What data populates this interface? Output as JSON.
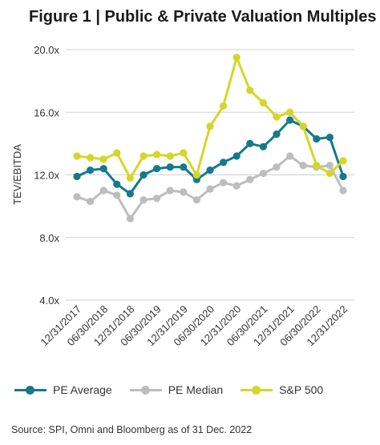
{
  "title": "Figure 1 | Public & Private Valuation Multiples",
  "source": "Source: SPI, Omni and Bloomberg as of 31 Dec. 2022",
  "colors": {
    "pe_average": "#137a8c",
    "pe_median": "#bdbdbd",
    "sp500": "#d4d62a",
    "grid": "#d0d0d0",
    "axis_text": "#333333"
  },
  "chart_data": {
    "type": "line",
    "title": "Figure 1 | Public & Private Valuation Multiples",
    "ylabel": "TEV/EBITDA",
    "xlabel": "",
    "ylim": [
      4.0,
      20.0
    ],
    "yticks": [
      "4.0x",
      "8.0x",
      "12.0x",
      "16.0x",
      "20.0x"
    ],
    "ytick_values": [
      4,
      8,
      12,
      16,
      20
    ],
    "grid": "horizontal",
    "legend_position": "bottom",
    "x": [
      "Q4 2017",
      "Q1 2018",
      "Q2 2018",
      "Q3 2018",
      "Q4 2018",
      "Q1 2019",
      "Q2 2019",
      "Q3 2019",
      "Q4 2019",
      "Q1 2020",
      "Q2 2020",
      "Q3 2020",
      "Q4 2020",
      "Q1 2021",
      "Q2 2021",
      "Q3 2021",
      "Q4 2021",
      "Q1 2022",
      "Q2 2022",
      "Q3 2022",
      "Q4 2022"
    ],
    "xtick_labels": [
      "12/31/2017",
      "06/30/2018",
      "12/31/2018",
      "06/30/2019",
      "12/31/2019",
      "06/30/2020",
      "12/31/2020",
      "06/30/2021",
      "12/31/2021",
      "06/30/2022",
      "12/31/2022"
    ],
    "xtick_index": [
      0,
      2,
      4,
      6,
      8,
      10,
      12,
      14,
      16,
      18,
      20
    ],
    "series": [
      {
        "name": "PE Average",
        "key": "pe_average",
        "values": [
          11.9,
          12.3,
          12.4,
          11.4,
          10.8,
          12.0,
          12.4,
          12.5,
          12.5,
          11.7,
          12.3,
          12.8,
          13.2,
          14.0,
          13.8,
          14.6,
          15.5,
          15.1,
          14.3,
          14.4,
          11.9
        ]
      },
      {
        "name": "PE Median",
        "key": "pe_median",
        "values": [
          10.6,
          10.3,
          11.0,
          10.7,
          9.2,
          10.4,
          10.5,
          11.0,
          10.9,
          10.4,
          11.1,
          11.5,
          11.3,
          11.7,
          12.1,
          12.5,
          13.2,
          12.6,
          12.5,
          12.6,
          11.0
        ]
      },
      {
        "name": "S&P 500",
        "key": "sp500",
        "values": [
          13.2,
          13.1,
          13.0,
          13.4,
          11.8,
          13.2,
          13.3,
          13.2,
          13.4,
          12.0,
          15.1,
          16.4,
          19.5,
          17.4,
          16.6,
          15.7,
          16.0,
          15.1,
          12.6,
          12.1,
          12.9
        ]
      }
    ]
  }
}
